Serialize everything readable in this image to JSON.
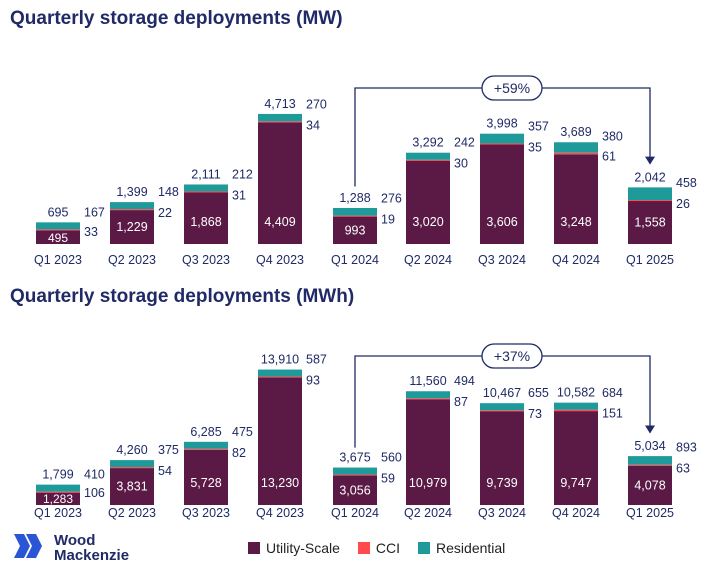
{
  "colors": {
    "utility": "#5a1a45",
    "cci": "#ff4b4b",
    "residential": "#1f9a9b",
    "text_dark": "#1f2a66",
    "text_light": "#ffffff"
  },
  "legend": [
    {
      "label": "Utility-Scale",
      "color": "#5a1a45"
    },
    {
      "label": "CCI",
      "color": "#ff4b4b"
    },
    {
      "label": "Residential",
      "color": "#1f9a9b"
    }
  ],
  "logo": {
    "line1": "Wood",
    "line2": "Mackenzie"
  },
  "chart_data": [
    {
      "type": "bar",
      "stacked": true,
      "title": "Quarterly storage deployments (MW)",
      "categories": [
        "Q1 2023",
        "Q2 2023",
        "Q3 2023",
        "Q4 2023",
        "Q1 2024",
        "Q2 2024",
        "Q3 2024",
        "Q4 2024",
        "Q1 2025"
      ],
      "series": [
        {
          "name": "Utility-Scale",
          "values": [
            495,
            1229,
            1868,
            4409,
            993,
            3020,
            3606,
            3248,
            1558
          ]
        },
        {
          "name": "CCI",
          "values": [
            33,
            22,
            31,
            34,
            19,
            30,
            35,
            61,
            26
          ]
        },
        {
          "name": "Residential",
          "values": [
            167,
            148,
            212,
            270,
            276,
            242,
            357,
            380,
            458
          ]
        }
      ],
      "totals": [
        695,
        1399,
        2111,
        4713,
        1288,
        3292,
        3998,
        3689,
        2042
      ],
      "labels": {
        "utility": [
          "495",
          "1,229",
          "1,868",
          "4,409",
          "993",
          "3,020",
          "3,606",
          "3,248",
          "1,558"
        ],
        "cci": [
          "33",
          "22",
          "31",
          "34",
          "19",
          "30",
          "35",
          "61",
          "26"
        ],
        "residential": [
          "167",
          "148",
          "212",
          "270",
          "276",
          "242",
          "357",
          "380",
          "458"
        ],
        "totals": [
          "695",
          "1,399",
          "2,111",
          "4,713",
          "1,288",
          "3,292",
          "3,998",
          "3,689",
          "2,042"
        ]
      },
      "annotation": {
        "text": "+59%",
        "from": "Q1 2024",
        "to": "Q1 2025"
      },
      "ylim": [
        0,
        4713
      ]
    },
    {
      "type": "bar",
      "stacked": true,
      "title": "Quarterly storage deployments (MWh)",
      "categories": [
        "Q1 2023",
        "Q2 2023",
        "Q3 2023",
        "Q4 2023",
        "Q1 2024",
        "Q2 2024",
        "Q3 2024",
        "Q4 2024",
        "Q1 2025"
      ],
      "series": [
        {
          "name": "Utility-Scale",
          "values": [
            1283,
            3831,
            5728,
            13230,
            3056,
            10979,
            9739,
            9747,
            4078
          ]
        },
        {
          "name": "CCI",
          "values": [
            106,
            54,
            82,
            93,
            59,
            87,
            73,
            151,
            63
          ]
        },
        {
          "name": "Residential",
          "values": [
            410,
            375,
            475,
            587,
            560,
            494,
            655,
            684,
            893
          ]
        }
      ],
      "totals": [
        1799,
        4260,
        6285,
        13910,
        3675,
        11560,
        10467,
        10582,
        5034
      ],
      "labels": {
        "utility": [
          "1,283",
          "3,831",
          "5,728",
          "13,230",
          "3,056",
          "10,979",
          "9,739",
          "9,747",
          "4,078"
        ],
        "cci": [
          "106",
          "54",
          "82",
          "93",
          "59",
          "87",
          "73",
          "151",
          "63"
        ],
        "residential": [
          "410",
          "375",
          "475",
          "587",
          "560",
          "494",
          "655",
          "684",
          "893"
        ],
        "totals": [
          "1,799",
          "4,260",
          "6,285",
          "13,910",
          "3,675",
          "11,560",
          "10,467",
          "10,582",
          "5,034"
        ]
      },
      "annotation": {
        "text": "+37%",
        "from": "Q1 2024",
        "to": "Q1 2025"
      },
      "ylim": [
        0,
        13910
      ]
    }
  ]
}
